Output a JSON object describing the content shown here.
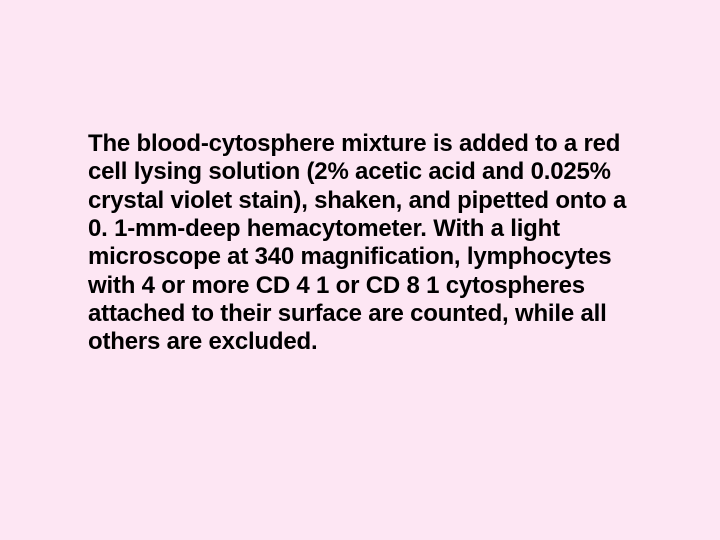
{
  "slide": {
    "background_color": "#fde6f3",
    "text_color": "#000000",
    "font_family": "Arial",
    "font_size_pt": 18,
    "font_weight": "bold",
    "body_text": "The blood-cytosphere mixture is added to a red cell lysing solution (2% acetic acid and 0.025% crystal violet stain), shaken, and pipetted onto a 0. 1-mm-deep hemacytometer. With a light microscope at 340 magnification, lymphocytes with 4 or more CD 4 1 or CD 8 1 cytospheres attached to their surface are counted, while all others are excluded."
  }
}
